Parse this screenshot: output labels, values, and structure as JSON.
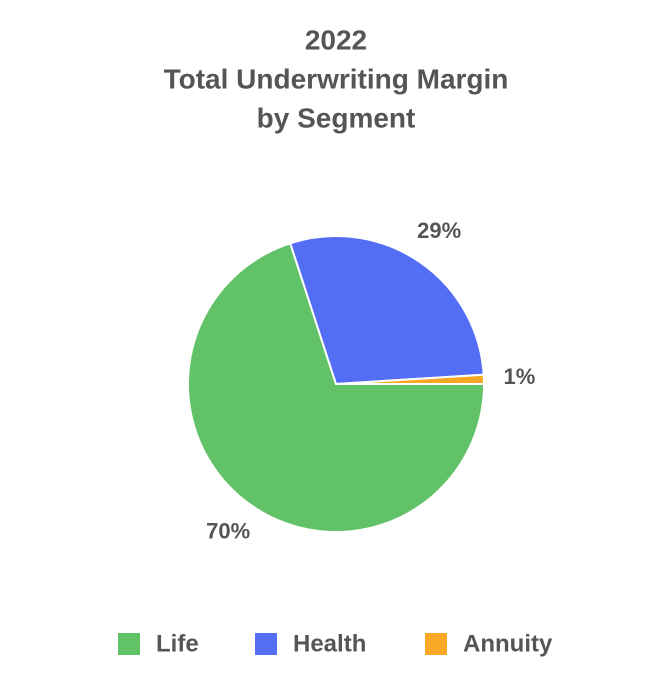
{
  "chart_data": {
    "type": "pie",
    "title": [
      "2022",
      "Total Underwriting Margin",
      "by Segment"
    ],
    "categories": [
      "Life",
      "Health",
      "Annuity"
    ],
    "values": [
      70,
      29,
      1
    ],
    "value_labels": [
      "70%",
      "29%",
      "1%"
    ],
    "colors": [
      "#62c267",
      "#536ef5",
      "#f9a825"
    ],
    "legend": "bottom"
  }
}
